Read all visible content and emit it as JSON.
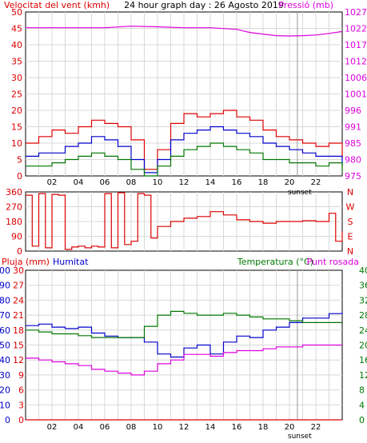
{
  "header": {
    "wind_label": "Velocitat del vent (kmh)",
    "title": "24 hour graph day : 26 Agosto 2019",
    "pressure_label": "Pressió (mb)"
  },
  "footer": {
    "rain_label": "Pluja (mm)",
    "humidity_label": "Humitat",
    "temp_label": "Temperatura (°C)",
    "dew_label": "Punt rosada"
  },
  "colors": {
    "wind_gust": "#dd0000",
    "wind_avg": "#0000cc",
    "wind_low": "#007700",
    "pressure": "#dd00dd",
    "direction": "#dd0000",
    "humidity": "#0000cc",
    "temperature": "#007700",
    "dew": "#dd00dd",
    "rain": "#dd0000",
    "grid": "#d8d8d8"
  },
  "chart_data": [
    {
      "type": "line",
      "name": "wind-pressure",
      "x_ticks": [
        "02",
        "04",
        "06",
        "08",
        "10",
        "12",
        "14",
        "16",
        "18",
        "20",
        "22"
      ],
      "x_marker": "sunset",
      "ylabel_left": "Velocitat del vent (kmh)",
      "ylim_left": [
        0,
        50
      ],
      "yticks_left": [
        "0",
        "5",
        "10",
        "15",
        "20",
        "25",
        "30",
        "35",
        "40",
        "45",
        "50"
      ],
      "ylabel_right": "Pressió (mb)",
      "ylim_right": [
        975,
        1027
      ],
      "yticks_right": [
        "975",
        "980",
        "985",
        "991",
        "996",
        "1001",
        "1006",
        "1012",
        "1017",
        "1022",
        "1027"
      ],
      "series": [
        {
          "key": "gust",
          "axis": "left",
          "x": [
            0,
            1,
            2,
            3,
            4,
            5,
            6,
            7,
            8,
            9,
            10,
            11,
            12,
            13,
            14,
            15,
            16,
            17,
            18,
            19,
            20,
            21,
            22,
            23,
            24
          ],
          "y": [
            10,
            12,
            14,
            13,
            15,
            17,
            16,
            15,
            11,
            2,
            8,
            16,
            19,
            18,
            19,
            20,
            18,
            17,
            14,
            12,
            11,
            10,
            9,
            10,
            5
          ]
        },
        {
          "key": "avg",
          "axis": "left",
          "x": [
            0,
            1,
            2,
            3,
            4,
            5,
            6,
            7,
            8,
            9,
            10,
            11,
            12,
            13,
            14,
            15,
            16,
            17,
            18,
            19,
            20,
            21,
            22,
            23,
            24
          ],
          "y": [
            6,
            7,
            7,
            9,
            10,
            12,
            11,
            9,
            5,
            1,
            5,
            11,
            13,
            14,
            15,
            14,
            13,
            12,
            10,
            9,
            8,
            7,
            6,
            6,
            3
          ]
        },
        {
          "key": "low",
          "axis": "left",
          "x": [
            0,
            1,
            2,
            3,
            4,
            5,
            6,
            7,
            8,
            9,
            10,
            11,
            12,
            13,
            14,
            15,
            16,
            17,
            18,
            19,
            20,
            21,
            22,
            23,
            24
          ],
          "y": [
            3,
            3,
            4,
            5,
            6,
            7,
            6,
            5,
            2,
            0,
            3,
            6,
            8,
            9,
            10,
            9,
            8,
            7,
            5,
            5,
            4,
            4,
            3,
            4,
            1
          ]
        },
        {
          "key": "pressure",
          "axis": "right",
          "x": [
            0,
            2,
            4,
            6,
            8,
            10,
            12,
            14,
            16,
            17,
            18,
            19,
            20,
            21,
            22,
            23,
            24
          ],
          "y": [
            1022,
            1022,
            1022,
            1022,
            1022.5,
            1022.3,
            1022,
            1022,
            1021.5,
            1020.5,
            1020,
            1019.5,
            1019.4,
            1019.5,
            1019.7,
            1020.2,
            1020.8
          ]
        }
      ]
    },
    {
      "type": "line",
      "name": "wind-direction",
      "ylim": [
        0,
        360
      ],
      "yticks": [
        "0",
        "90",
        "180",
        "270",
        "360"
      ],
      "yticks_right": [
        "N",
        "E",
        "S",
        "W",
        "N"
      ],
      "series": [
        {
          "key": "direction",
          "x": [
            0,
            0.5,
            1,
            1.5,
            2,
            2.5,
            3,
            3.5,
            4,
            4.5,
            5,
            5.5,
            6,
            6.5,
            7,
            7.5,
            8,
            8.5,
            9,
            9.5,
            10,
            11,
            12,
            13,
            14,
            15,
            16,
            17,
            18,
            19,
            20,
            21,
            22,
            23,
            23.5,
            24
          ],
          "y": [
            340,
            30,
            350,
            20,
            345,
            340,
            10,
            25,
            30,
            20,
            30,
            25,
            350,
            20,
            355,
            40,
            60,
            350,
            340,
            80,
            150,
            180,
            200,
            210,
            240,
            220,
            190,
            180,
            170,
            180,
            180,
            185,
            180,
            230,
            60,
            120
          ]
        }
      ]
    },
    {
      "type": "line",
      "name": "temperature-humidity",
      "x_ticks": [
        "02",
        "04",
        "06",
        "08",
        "10",
        "12",
        "14",
        "16",
        "18",
        "20",
        "22"
      ],
      "x_marker": "sunset",
      "ylabel_rain": "Pluja (mm)",
      "ylim_rain": [
        0,
        30
      ],
      "yticks_rain": [
        "0",
        "3",
        "6",
        "9",
        "12",
        "15",
        "18",
        "21",
        "24",
        "27",
        "30"
      ],
      "ylabel_humidity": "Humitat",
      "ylim_humidity": [
        0,
        100
      ],
      "yticks_humidity": [
        "0",
        "10",
        "20",
        "30",
        "40",
        "50",
        "60",
        "70",
        "80",
        "90",
        "100"
      ],
      "ylabel_temp": "Temperatura (°C)",
      "ylim_temp": [
        0,
        40
      ],
      "yticks_temp": [
        "0",
        "4",
        "8",
        "12",
        "16",
        "20",
        "24",
        "28",
        "32",
        "36",
        "40"
      ],
      "series": [
        {
          "key": "humidity",
          "axis": "humidity",
          "x": [
            0,
            1,
            2,
            3,
            4,
            5,
            6,
            7,
            8,
            9,
            10,
            11,
            12,
            13,
            14,
            15,
            16,
            17,
            18,
            19,
            20,
            21,
            22,
            23,
            24
          ],
          "y": [
            63,
            64,
            62,
            61,
            62,
            58,
            56,
            55,
            55,
            52,
            44,
            42,
            48,
            50,
            44,
            52,
            56,
            55,
            60,
            62,
            65,
            68,
            68,
            71,
            72
          ]
        },
        {
          "key": "temperature",
          "axis": "temp",
          "x": [
            0,
            1,
            2,
            3,
            4,
            5,
            6,
            7,
            8,
            9,
            10,
            11,
            12,
            13,
            14,
            15,
            16,
            17,
            18,
            19,
            20,
            21,
            22,
            23,
            24
          ],
          "y": [
            24,
            23.5,
            23,
            23,
            22.5,
            22,
            22,
            22,
            22,
            25,
            28,
            29,
            28.5,
            28,
            28,
            28.5,
            28,
            27.5,
            27,
            27,
            26.5,
            26,
            26,
            26,
            26
          ]
        },
        {
          "key": "dew",
          "axis": "temp",
          "x": [
            0,
            1,
            2,
            3,
            4,
            5,
            6,
            7,
            8,
            9,
            10,
            11,
            12,
            13,
            14,
            15,
            16,
            17,
            18,
            19,
            20,
            21,
            22,
            23,
            24
          ],
          "y": [
            16.5,
            16,
            15.5,
            15,
            14.5,
            13.5,
            13,
            12.5,
            12,
            13,
            15,
            16,
            17.5,
            17.5,
            17,
            18,
            18.5,
            18.5,
            19,
            19.5,
            19.5,
            20,
            20,
            20,
            20
          ]
        },
        {
          "key": "rain",
          "axis": "rain",
          "x": [
            0,
            24
          ],
          "y": [
            0,
            0
          ]
        }
      ]
    }
  ]
}
